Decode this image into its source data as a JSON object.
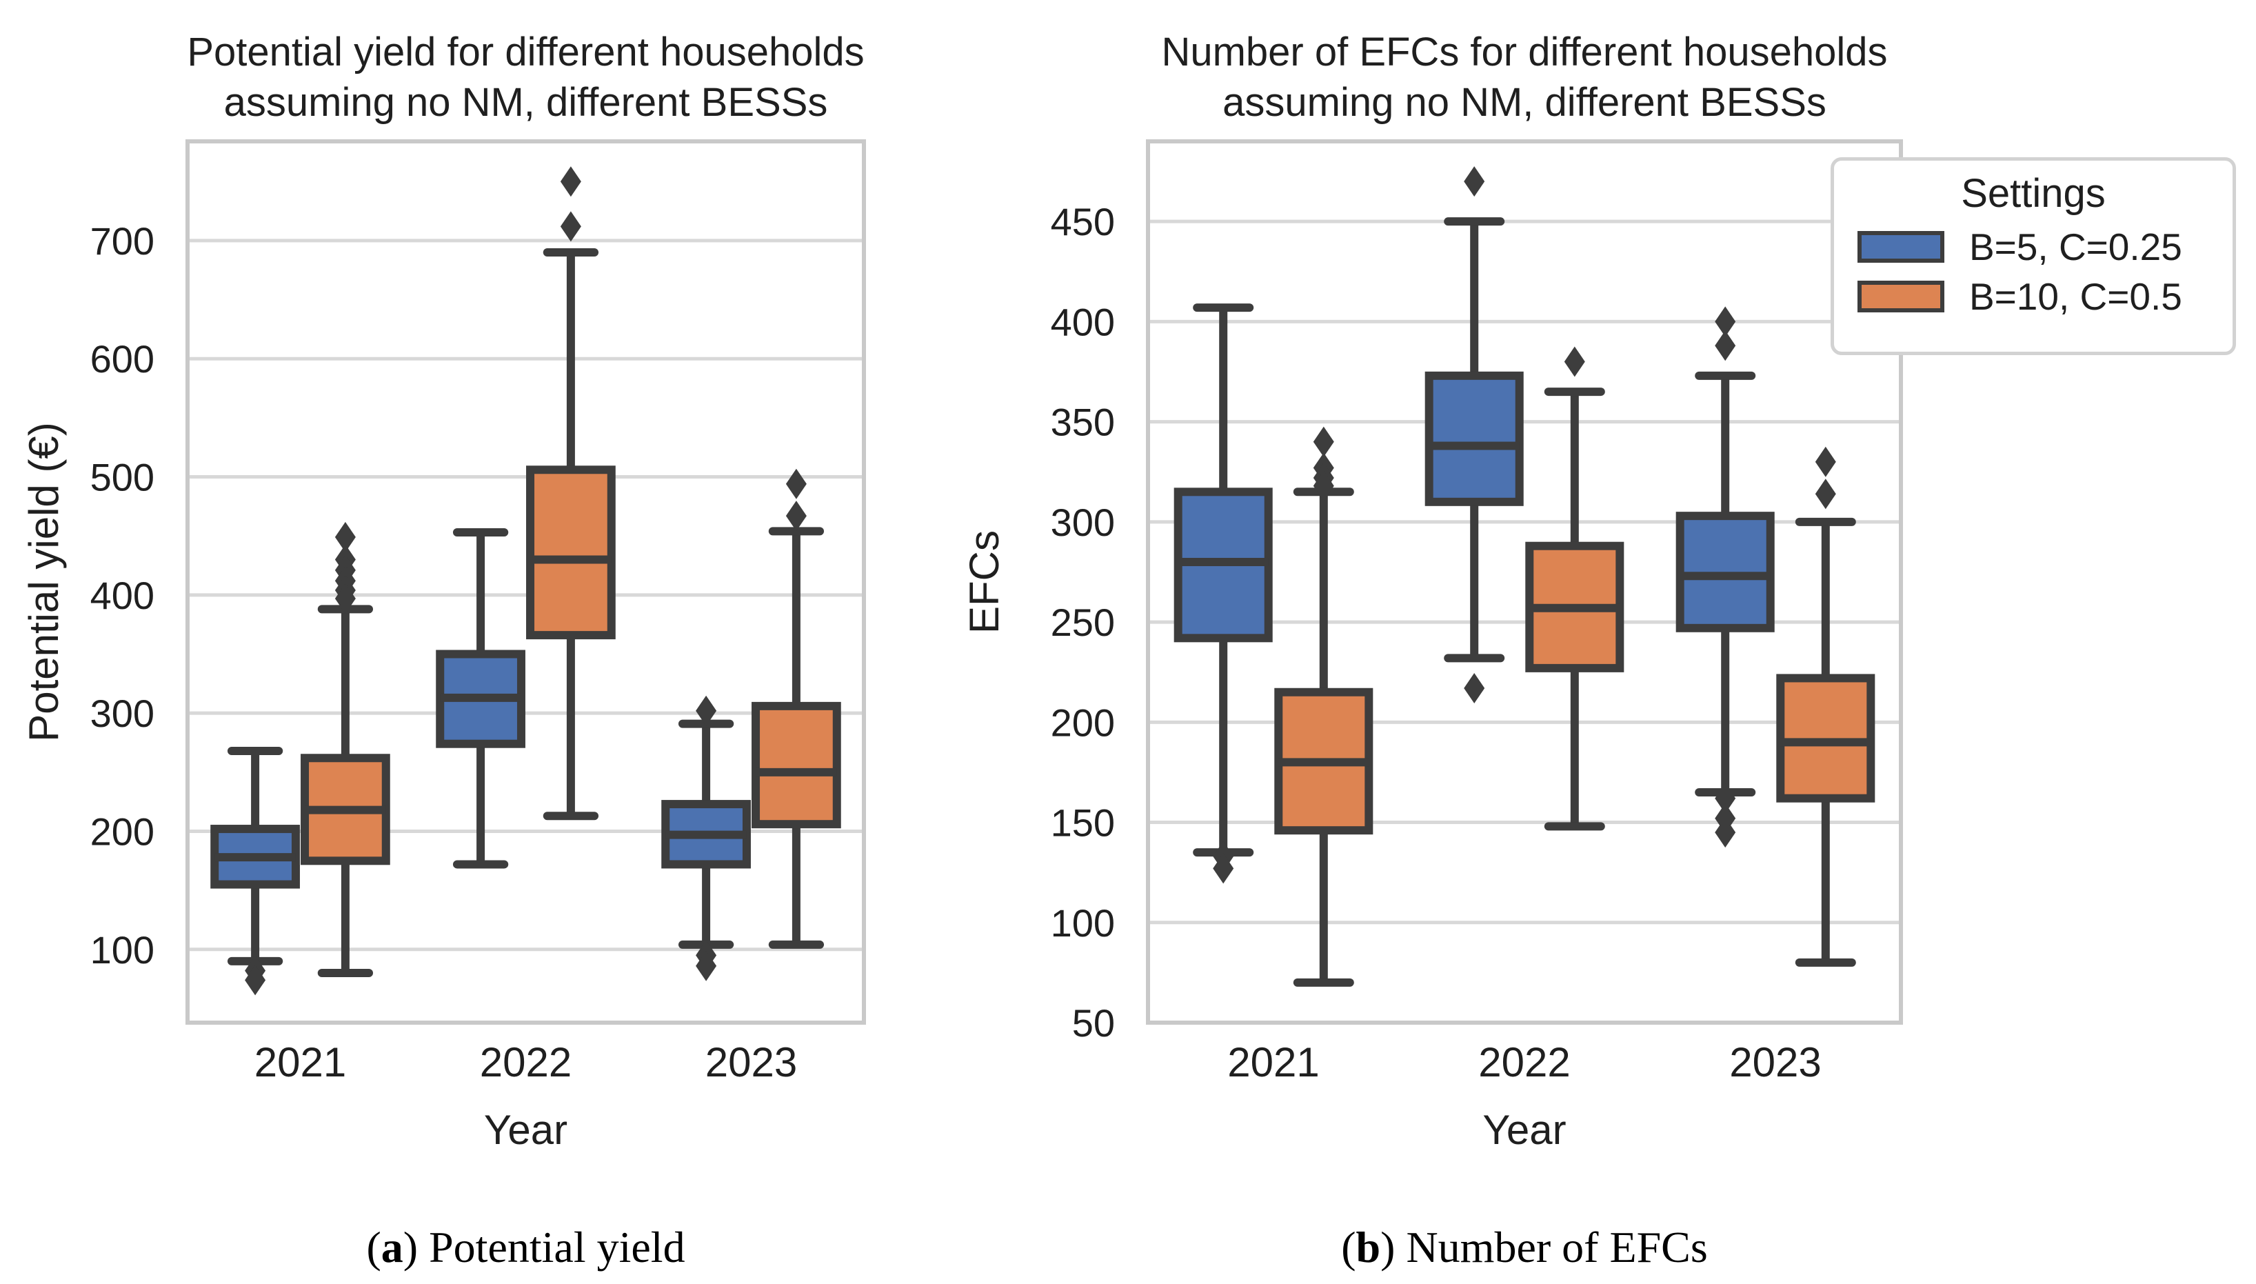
{
  "page": {
    "background": "#ffffff"
  },
  "colors": {
    "blue": "#4C72B0",
    "orange": "#DD8452",
    "box_edge": "#3D3D3D",
    "flier": "#3D3D3D",
    "grid": "#D8D8D8",
    "plot_border": "#C9C9C9",
    "text": "#1F1F1F"
  },
  "legend": {
    "title": "Settings",
    "items": [
      {
        "label": "B=5, C=0.25",
        "color": "#4C72B0"
      },
      {
        "label": "B=10, C=0.5",
        "color": "#DD8452"
      }
    ]
  },
  "captions": {
    "a": {
      "open": "(",
      "marker": "a",
      "close": ")",
      "text": "Potential yield"
    },
    "b": {
      "open": "(",
      "marker": "b",
      "close": ")",
      "text": "Number of EFCs"
    }
  },
  "chart_data": [
    {
      "type": "boxplot",
      "title_lines": [
        "Potential yield for different households",
        "assuming no NM, different BESSs"
      ],
      "xlabel": "Year",
      "ylabel": "Potential yield (€)",
      "categories": [
        "2021",
        "2022",
        "2023"
      ],
      "ylim": [
        38,
        784
      ],
      "yticks": [
        100,
        200,
        300,
        400,
        500,
        600,
        700
      ],
      "grid": true,
      "series": [
        {
          "name": "B=5, C=0.25",
          "color": "#4C72B0",
          "boxes": [
            {
              "whislo": 90,
              "q1": 155,
              "med": 178,
              "q3": 202,
              "whishi": 268,
              "fliers": [
                82,
                74
              ]
            },
            {
              "whislo": 172,
              "q1": 274,
              "med": 313,
              "q3": 350,
              "whishi": 453,
              "fliers": []
            },
            {
              "whislo": 104,
              "q1": 172,
              "med": 197,
              "q3": 223,
              "whishi": 291,
              "fliers": [
                302,
                95,
                86
              ]
            }
          ]
        },
        {
          "name": "B=10, C=0.5",
          "color": "#DD8452",
          "boxes": [
            {
              "whislo": 80,
              "q1": 175,
              "med": 218,
              "q3": 262,
              "whishi": 388,
              "fliers": [
                449,
                430,
                421,
                412,
                404,
                397
              ]
            },
            {
              "whislo": 213,
              "q1": 366,
              "med": 430,
              "q3": 506,
              "whishi": 690,
              "fliers": [
                750,
                712
              ]
            },
            {
              "whislo": 104,
              "q1": 206,
              "med": 250,
              "q3": 306,
              "whishi": 454,
              "fliers": [
                494,
                467
              ]
            }
          ]
        }
      ]
    },
    {
      "type": "boxplot",
      "title_lines": [
        "Number of EFCs for different households",
        "assuming no NM, different BESSs"
      ],
      "xlabel": "Year",
      "ylabel": "EFCs",
      "categories": [
        "2021",
        "2022",
        "2023"
      ],
      "ylim": [
        50,
        490
      ],
      "yticks": [
        50,
        100,
        150,
        200,
        250,
        300,
        350,
        400,
        450
      ],
      "grid": true,
      "legend_position": "upper right outside",
      "series": [
        {
          "name": "B=5, C=0.25",
          "color": "#4C72B0",
          "boxes": [
            {
              "whislo": 135,
              "q1": 242,
              "med": 280,
              "q3": 315,
              "whishi": 407,
              "fliers": [
                133,
                127
              ]
            },
            {
              "whislo": 232,
              "q1": 310,
              "med": 338,
              "q3": 373,
              "whishi": 450,
              "fliers": [
                470,
                217
              ]
            },
            {
              "whislo": 165,
              "q1": 247,
              "med": 273,
              "q3": 303,
              "whishi": 373,
              "fliers": [
                400,
                388,
                162,
                152,
                145
              ]
            }
          ]
        },
        {
          "name": "B=10, C=0.5",
          "color": "#DD8452",
          "boxes": [
            {
              "whislo": 70,
              "q1": 146,
              "med": 180,
              "q3": 215,
              "whishi": 315,
              "fliers": [
                340,
                327,
                322,
                318
              ]
            },
            {
              "whislo": 148,
              "q1": 227,
              "med": 257,
              "q3": 288,
              "whishi": 365,
              "fliers": [
                380
              ]
            },
            {
              "whislo": 80,
              "q1": 162,
              "med": 190,
              "q3": 222,
              "whishi": 300,
              "fliers": [
                330,
                314
              ]
            }
          ]
        }
      ]
    }
  ]
}
